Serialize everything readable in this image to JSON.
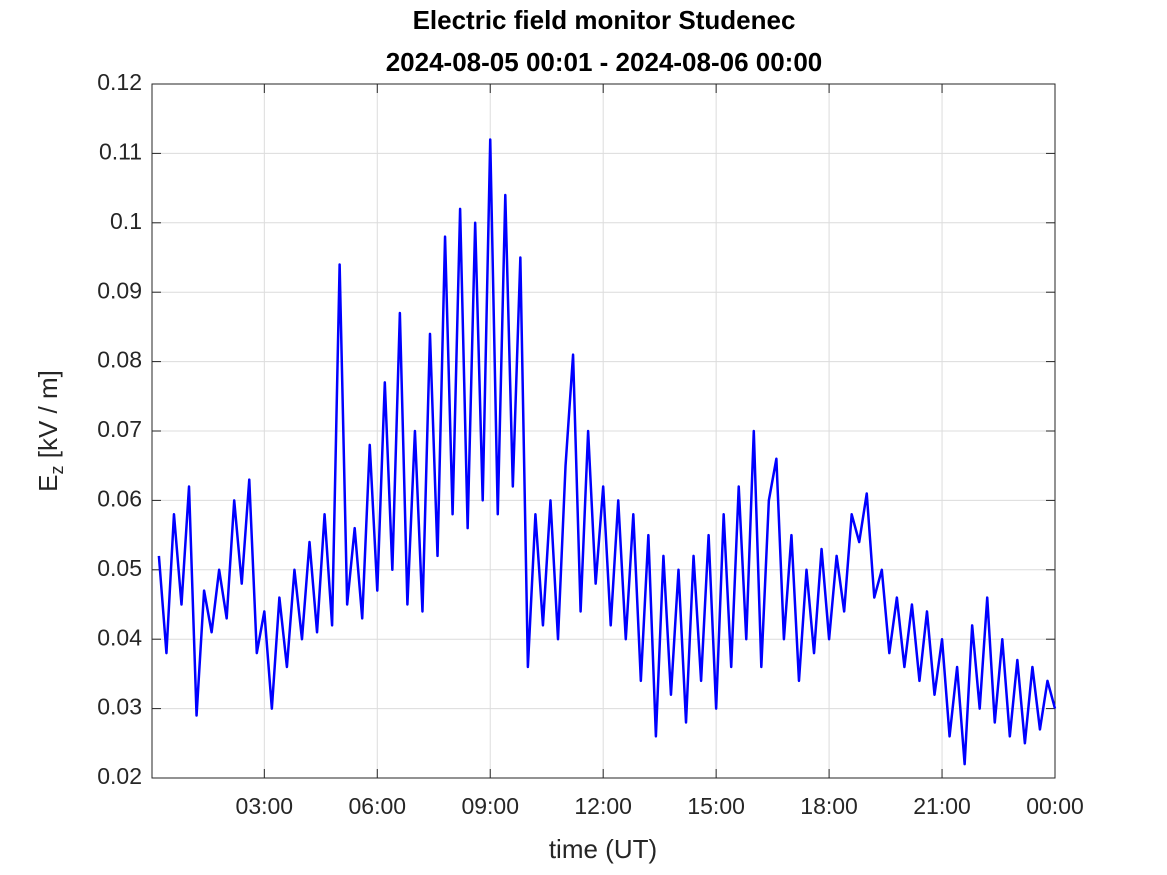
{
  "chart_data": {
    "type": "line",
    "title": [
      "Electric field monitor Studenec",
      "2024-08-05 00:01 - 2024-08-06 00:00"
    ],
    "xlabel": "time (UT)",
    "ylabel": {
      "base": "E",
      "sub": "z",
      "rest": " [kV / m]"
    },
    "xlim": [
      0.0167,
      24
    ],
    "xticks": [
      {
        "value": 3,
        "label": "03:00"
      },
      {
        "value": 6,
        "label": "06:00"
      },
      {
        "value": 9,
        "label": "09:00"
      },
      {
        "value": 12,
        "label": "12:00"
      },
      {
        "value": 15,
        "label": "15:00"
      },
      {
        "value": 18,
        "label": "18:00"
      },
      {
        "value": 21,
        "label": "21:00"
      },
      {
        "value": 24,
        "label": "00:00"
      }
    ],
    "ylim": [
      0.02,
      0.12
    ],
    "yticks": [
      0.02,
      0.03,
      0.04,
      0.05,
      0.06,
      0.07,
      0.08,
      0.09,
      0.1,
      0.11,
      0.12
    ],
    "grid": true,
    "x": [
      0.2,
      0.4,
      0.6,
      0.8,
      1.0,
      1.2,
      1.4,
      1.6,
      1.8,
      2.0,
      2.2,
      2.4,
      2.6,
      2.8,
      3.0,
      3.2,
      3.4,
      3.6,
      3.8,
      4.0,
      4.2,
      4.4,
      4.6,
      4.8,
      5.0,
      5.2,
      5.4,
      5.6,
      5.8,
      6.0,
      6.2,
      6.4,
      6.6,
      6.8,
      7.0,
      7.2,
      7.4,
      7.6,
      7.8,
      8.0,
      8.2,
      8.4,
      8.6,
      8.8,
      9.0,
      9.2,
      9.4,
      9.6,
      9.8,
      10.0,
      10.2,
      10.4,
      10.6,
      10.8,
      11.0,
      11.2,
      11.4,
      11.6,
      11.8,
      12.0,
      12.2,
      12.4,
      12.6,
      12.8,
      13.0,
      13.2,
      13.4,
      13.6,
      13.8,
      14.0,
      14.2,
      14.4,
      14.6,
      14.8,
      15.0,
      15.2,
      15.4,
      15.6,
      15.8,
      16.0,
      16.2,
      16.4,
      16.6,
      16.8,
      17.0,
      17.2,
      17.4,
      17.6,
      17.8,
      18.0,
      18.2,
      18.4,
      18.6,
      18.8,
      19.0,
      19.2,
      19.4,
      19.6,
      19.8,
      20.0,
      20.2,
      20.4,
      20.6,
      20.8,
      21.0,
      21.2,
      21.4,
      21.6,
      21.8,
      22.0,
      22.2,
      22.4,
      22.6,
      22.8,
      23.0,
      23.2,
      23.4,
      23.6,
      23.8,
      24.0
    ],
    "series": [
      {
        "color": "#0000ff",
        "values": [
          0.052,
          0.038,
          0.058,
          0.045,
          0.062,
          0.029,
          0.047,
          0.041,
          0.05,
          0.043,
          0.06,
          0.048,
          0.063,
          0.038,
          0.044,
          0.03,
          0.046,
          0.036,
          0.05,
          0.04,
          0.054,
          0.041,
          0.058,
          0.042,
          0.094,
          0.045,
          0.056,
          0.043,
          0.068,
          0.047,
          0.077,
          0.05,
          0.087,
          0.045,
          0.07,
          0.044,
          0.084,
          0.052,
          0.098,
          0.058,
          0.102,
          0.056,
          0.1,
          0.06,
          0.112,
          0.058,
          0.104,
          0.062,
          0.095,
          0.036,
          0.058,
          0.042,
          0.06,
          0.04,
          0.065,
          0.081,
          0.044,
          0.07,
          0.048,
          0.062,
          0.042,
          0.06,
          0.04,
          0.058,
          0.034,
          0.055,
          0.026,
          0.052,
          0.032,
          0.05,
          0.028,
          0.052,
          0.034,
          0.055,
          0.03,
          0.058,
          0.036,
          0.062,
          0.04,
          0.07,
          0.036,
          0.06,
          0.066,
          0.04,
          0.055,
          0.034,
          0.05,
          0.038,
          0.053,
          0.04,
          0.052,
          0.044,
          0.058,
          0.054,
          0.061,
          0.046,
          0.05,
          0.038,
          0.046,
          0.036,
          0.045,
          0.034,
          0.044,
          0.032,
          0.04,
          0.026,
          0.036,
          0.022,
          0.042,
          0.03,
          0.046,
          0.028,
          0.04,
          0.026,
          0.037,
          0.025,
          0.036,
          0.027,
          0.034,
          0.03
        ]
      }
    ]
  }
}
